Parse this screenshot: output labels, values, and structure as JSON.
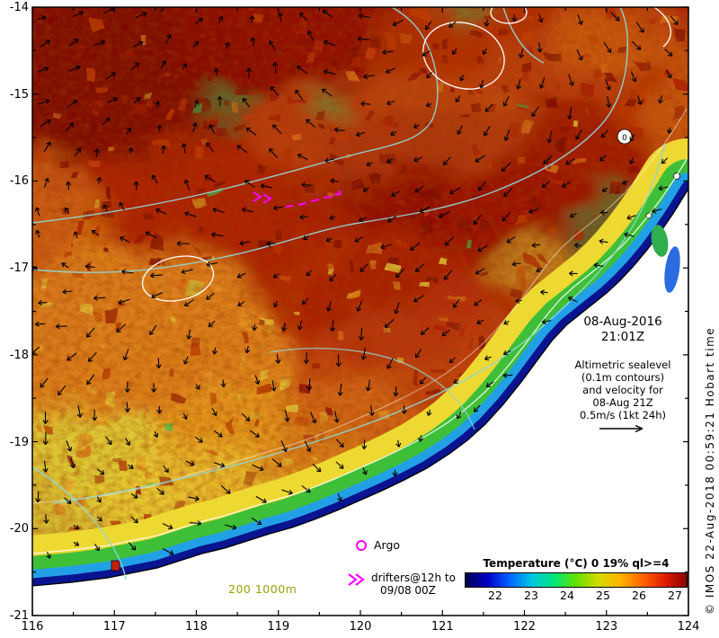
{
  "map": {
    "datetime": {
      "date": "08-Aug-2016",
      "time": "21:01Z"
    },
    "info_box": {
      "lines": [
        "Altimetric sealevel",
        "(0.1m contours)",
        "and velocity for",
        "08-Aug 21Z",
        "0.5m/s (1kt 24h)"
      ]
    },
    "legend": {
      "argo_label": "Argo",
      "drifters_line1": "drifters@12h to",
      "drifters_line2": "09/08 00Z",
      "bathy_label": "200 1000m"
    },
    "colorbar": {
      "title": "Temperature (°C) 0 19% ql>=4",
      "tick_labels": [
        "22",
        "23",
        "24",
        "25",
        "26",
        "27"
      ],
      "gradient": [
        "#00004f",
        "#0000c8",
        "#0064ff",
        "#00c8e1",
        "#00e67d",
        "#64e100",
        "#d2dc00",
        "#ffb400",
        "#ff6400",
        "#e11e00",
        "#8c0000"
      ]
    },
    "axes": {
      "lon_tick_labels": [
        "116",
        "117",
        "118",
        "119",
        "120",
        "121",
        "122",
        "123",
        "124"
      ],
      "lat_tick_labels": [
        "-14",
        "-15",
        "-16",
        "-17",
        "-18",
        "-19",
        "-20",
        "-21"
      ]
    },
    "contour_zero_label": "0",
    "credit": "© IMOS 22-Aug-2018 00:59:21 Hobart time",
    "colors": {
      "sea_base": "#a41505",
      "land": "#ffffff",
      "frame": "#000000",
      "arrow": "#000000",
      "sealevel_contour": "#8fd6d6",
      "bathy_contour": "#ffffff",
      "drifter": "#ff00ff",
      "argo": "#ff00ff",
      "bathy_label": "#9aa005"
    }
  }
}
